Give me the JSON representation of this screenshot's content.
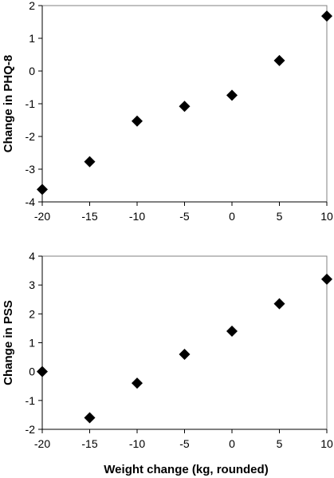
{
  "chart_data": [
    {
      "type": "scatter",
      "title": "",
      "xlabel": "",
      "ylabel": "Change in PHQ-8",
      "xlim": [
        -20,
        10
      ],
      "ylim": [
        -4,
        2
      ],
      "xticks": [
        -20,
        -15,
        -10,
        -5,
        0,
        5,
        10
      ],
      "yticks": [
        -4,
        -3,
        -2,
        -1,
        0,
        1,
        2
      ],
      "x_tick_labels": [
        "-20",
        "-15",
        "-10",
        "-5",
        "0",
        "5",
        "10"
      ],
      "y_tick_labels": [
        "-4",
        "-3",
        "-2",
        "-1",
        "0",
        "1",
        "2"
      ],
      "grid": false,
      "marker": "diamond",
      "series": [
        {
          "x": [
            -20,
            -15,
            -10,
            -5,
            0,
            5,
            10
          ],
          "y": [
            -3.62,
            -2.77,
            -1.53,
            -1.08,
            -0.74,
            0.32,
            1.68
          ]
        }
      ]
    },
    {
      "type": "scatter",
      "title": "",
      "xlabel": "Weight change (kg, rounded)",
      "ylabel": "Change in PSS",
      "xlim": [
        -20,
        10
      ],
      "ylim": [
        -2,
        4
      ],
      "xticks": [
        -20,
        -15,
        -10,
        -5,
        0,
        5,
        10
      ],
      "yticks": [
        -2,
        -1,
        0,
        1,
        2,
        3,
        4
      ],
      "x_tick_labels": [
        "-20",
        "-15",
        "-10",
        "-5",
        "0",
        "5",
        "10"
      ],
      "y_tick_labels": [
        "-2",
        "-1",
        "0",
        "1",
        "2",
        "3",
        "4"
      ],
      "grid": false,
      "marker": "diamond",
      "series": [
        {
          "x": [
            -20,
            -15,
            -10,
            -5,
            0,
            5,
            10
          ],
          "y": [
            0.0,
            -1.6,
            -0.4,
            0.6,
            1.4,
            2.35,
            3.2
          ]
        }
      ]
    }
  ],
  "colors": {
    "marker": "#000000",
    "frame": "#808080"
  }
}
